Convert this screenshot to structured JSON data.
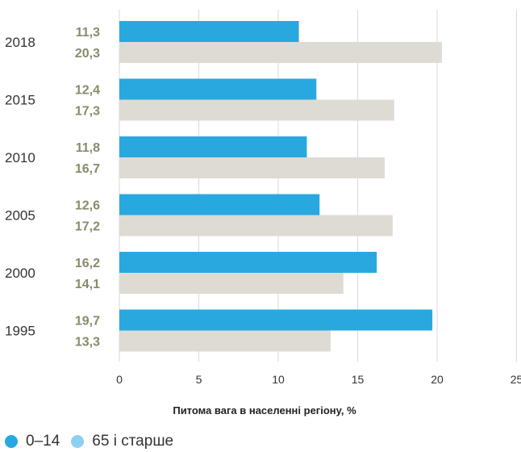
{
  "chart_data": {
    "type": "bar",
    "orientation": "horizontal",
    "categories": [
      "2018",
      "2015",
      "2010",
      "2005",
      "2000",
      "1995"
    ],
    "series": [
      {
        "name": "0–14",
        "values": [
          11.3,
          12.4,
          11.8,
          12.6,
          16.2,
          19.7
        ],
        "labels": [
          "11,3",
          "12,4",
          "11,8",
          "12,6",
          "16,2",
          "19,7"
        ],
        "color": "#29a8e0"
      },
      {
        "name": "65 і старше",
        "values": [
          20.3,
          17.3,
          16.7,
          17.2,
          14.1,
          13.3
        ],
        "labels": [
          "20,3",
          "17,3",
          "16,7",
          "17,2",
          "14,1",
          "13,3"
        ],
        "color": "#dedbd5"
      }
    ],
    "xlim": [
      0,
      25
    ],
    "xticks": [
      "0",
      "5",
      "10",
      "15",
      "20",
      "25"
    ],
    "xlabel": "Питома вага в населенні регіону, %",
    "grid": true,
    "legend_position": "bottom-left"
  },
  "colors": {
    "label": "#8a8a6a",
    "legend_second_swatch": "#8dcff0",
    "grid": "#d9d9d9"
  }
}
